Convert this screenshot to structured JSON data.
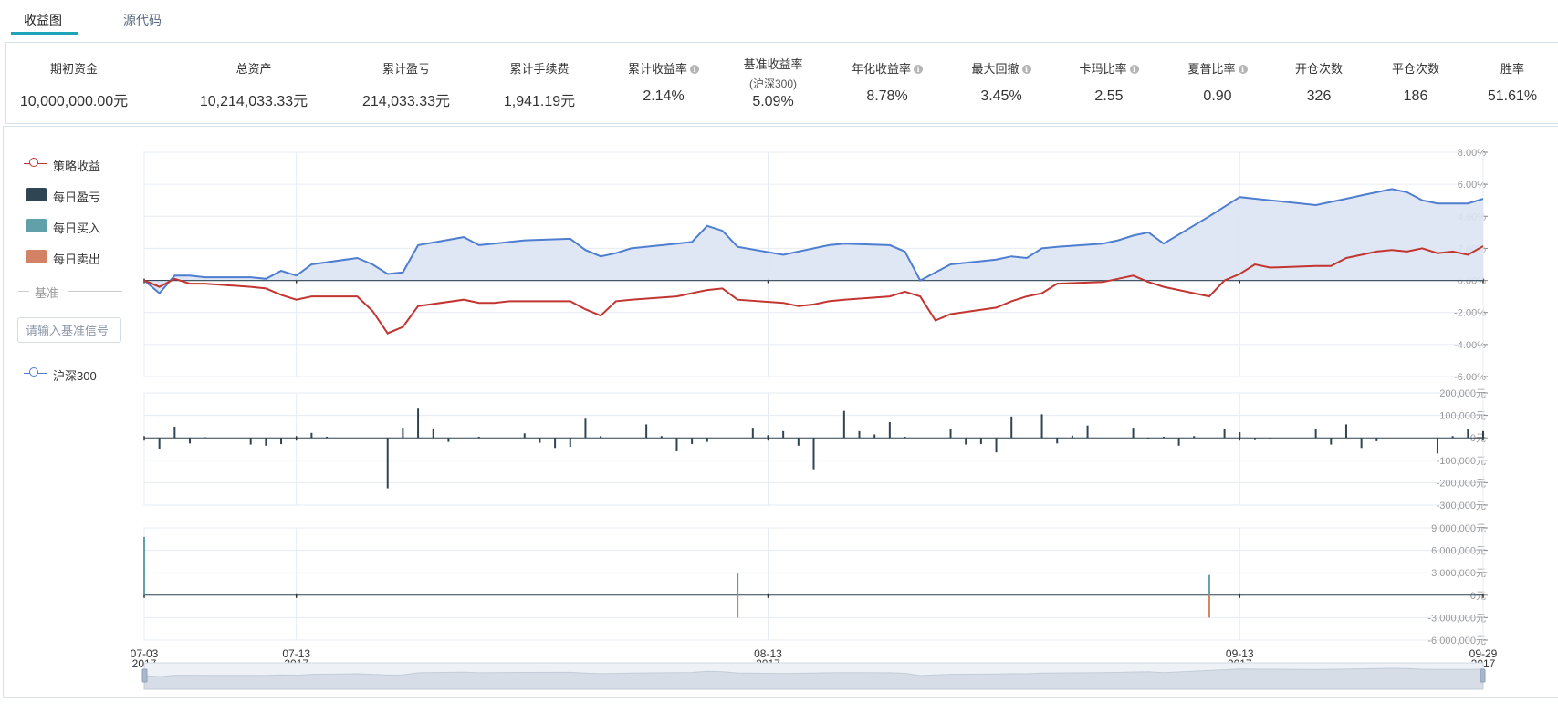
{
  "tabs": [
    {
      "label": "收益图",
      "active": true
    },
    {
      "label": "源代码",
      "active": false
    }
  ],
  "stats": [
    {
      "label": "期初资金",
      "value": "10,000,000.00元",
      "info": false
    },
    {
      "label": "总资产",
      "value": "10,214,033.33元",
      "info": false
    },
    {
      "label": "累计盈亏",
      "value": "214,033.33元",
      "info": false
    },
    {
      "label": "累计手续费",
      "value": "1,941.19元",
      "info": false
    },
    {
      "label": "累计收益率",
      "value": "2.14%",
      "info": true
    },
    {
      "label": "基准收益率",
      "sublabel": "(沪深300)",
      "value": "5.09%",
      "info": false
    },
    {
      "label": "年化收益率",
      "value": "8.78%",
      "info": true
    },
    {
      "label": "最大回撤",
      "value": "3.45%",
      "info": true
    },
    {
      "label": "卡玛比率",
      "value": "2.55",
      "info": true
    },
    {
      "label": "夏普比率",
      "value": "0.90",
      "info": true
    },
    {
      "label": "开仓次数",
      "value": "326",
      "info": false
    },
    {
      "label": "平仓次数",
      "value": "186",
      "info": false
    },
    {
      "label": "胜率",
      "value": "51.61%",
      "info": false
    }
  ],
  "legend": {
    "strategy": "策略收益",
    "daily_pnl": "每日盈亏",
    "daily_buy": "每日买入",
    "daily_sell": "每日卖出",
    "benchmark_section": "基准",
    "benchmark_placeholder": "请输入基准信号",
    "benchmark_series": "沪深300"
  },
  "colors": {
    "strategy": "#c23531",
    "benchmark": "#4f7ed0",
    "benchmark_fill": "#dbe4f3",
    "pnl": "#2f4554",
    "buy": "#61a0a8",
    "sell": "#d48265",
    "tab_accent": "#1fa3b8"
  },
  "chart_data": {
    "type": "line",
    "x_axis": {
      "range": [
        "2017-07-03",
        "2017-09-29"
      ],
      "ticks": [
        {
          "date": "2017-07-03",
          "label": "07-03",
          "year": "2017"
        },
        {
          "date": "2017-07-13",
          "label": "07-13",
          "year": "2017"
        },
        {
          "date": "2017-08-13",
          "label": "08-13",
          "year": "2017"
        },
        {
          "date": "2017-09-13",
          "label": "09-13",
          "year": "2017"
        },
        {
          "date": "2017-09-29",
          "label": "09-29",
          "year": "2017"
        }
      ]
    },
    "returns_panel": {
      "ylim": [
        -6,
        8
      ],
      "ticks": [
        "8.00%",
        "6.00%",
        "4.00%",
        "2.00%",
        "0.00%",
        "-2.00%",
        "-4.00%",
        "-6.00%"
      ],
      "tick_values": [
        8,
        6,
        4,
        2,
        0,
        -2,
        -4,
        -6
      ],
      "series": [
        {
          "name": "策略收益",
          "values": [
            [
              "2017-07-03",
              0.0
            ],
            [
              "2017-07-04",
              -0.4
            ],
            [
              "2017-07-05",
              0.1
            ],
            [
              "2017-07-06",
              -0.2
            ],
            [
              "2017-07-07",
              -0.2
            ],
            [
              "2017-07-10",
              -0.4
            ],
            [
              "2017-07-11",
              -0.5
            ],
            [
              "2017-07-12",
              -0.9
            ],
            [
              "2017-07-13",
              -1.2
            ],
            [
              "2017-07-14",
              -1.0
            ],
            [
              "2017-07-17",
              -1.0
            ],
            [
              "2017-07-18",
              -1.9
            ],
            [
              "2017-07-19",
              -3.3
            ],
            [
              "2017-07-20",
              -2.9
            ],
            [
              "2017-07-21",
              -1.6
            ],
            [
              "2017-07-24",
              -1.2
            ],
            [
              "2017-07-25",
              -1.4
            ],
            [
              "2017-07-26",
              -1.4
            ],
            [
              "2017-07-27",
              -1.3
            ],
            [
              "2017-07-28",
              -1.3
            ],
            [
              "2017-07-31",
              -1.3
            ],
            [
              "2017-08-01",
              -1.8
            ],
            [
              "2017-08-02",
              -2.2
            ],
            [
              "2017-08-03",
              -1.3
            ],
            [
              "2017-08-04",
              -1.2
            ],
            [
              "2017-08-07",
              -1.0
            ],
            [
              "2017-08-08",
              -0.8
            ],
            [
              "2017-08-09",
              -0.6
            ],
            [
              "2017-08-10",
              -0.5
            ],
            [
              "2017-08-11",
              -1.2
            ],
            [
              "2017-08-14",
              -1.4
            ],
            [
              "2017-08-15",
              -1.6
            ],
            [
              "2017-08-16",
              -1.5
            ],
            [
              "2017-08-17",
              -1.3
            ],
            [
              "2017-08-18",
              -1.2
            ],
            [
              "2017-08-21",
              -1.0
            ],
            [
              "2017-08-22",
              -0.7
            ],
            [
              "2017-08-23",
              -1.0
            ],
            [
              "2017-08-24",
              -2.5
            ],
            [
              "2017-08-25",
              -2.1
            ],
            [
              "2017-08-28",
              -1.7
            ],
            [
              "2017-08-29",
              -1.3
            ],
            [
              "2017-08-30",
              -1.0
            ],
            [
              "2017-08-31",
              -0.8
            ],
            [
              "2017-09-01",
              -0.2
            ],
            [
              "2017-09-04",
              -0.1
            ],
            [
              "2017-09-05",
              0.1
            ],
            [
              "2017-09-06",
              0.3
            ],
            [
              "2017-09-07",
              -0.1
            ],
            [
              "2017-09-08",
              -0.4
            ],
            [
              "2017-09-11",
              -1.0
            ],
            [
              "2017-09-12",
              0.0
            ],
            [
              "2017-09-13",
              0.4
            ],
            [
              "2017-09-14",
              1.0
            ],
            [
              "2017-09-15",
              0.8
            ],
            [
              "2017-09-18",
              0.9
            ],
            [
              "2017-09-19",
              0.9
            ],
            [
              "2017-09-20",
              1.4
            ],
            [
              "2017-09-21",
              1.6
            ],
            [
              "2017-09-22",
              1.8
            ],
            [
              "2017-09-23",
              1.9
            ],
            [
              "2017-09-24",
              1.8
            ],
            [
              "2017-09-25",
              2.0
            ],
            [
              "2017-09-26",
              1.7
            ],
            [
              "2017-09-27",
              1.8
            ],
            [
              "2017-09-28",
              1.6
            ],
            [
              "2017-09-29",
              2.14
            ]
          ]
        },
        {
          "name": "沪深300",
          "values": [
            [
              "2017-07-03",
              0.0
            ],
            [
              "2017-07-04",
              -0.8
            ],
            [
              "2017-07-05",
              0.3
            ],
            [
              "2017-07-06",
              0.3
            ],
            [
              "2017-07-07",
              0.2
            ],
            [
              "2017-07-10",
              0.2
            ],
            [
              "2017-07-11",
              0.1
            ],
            [
              "2017-07-12",
              0.6
            ],
            [
              "2017-07-13",
              0.3
            ],
            [
              "2017-07-14",
              1.0
            ],
            [
              "2017-07-17",
              1.4
            ],
            [
              "2017-07-18",
              1.0
            ],
            [
              "2017-07-19",
              0.4
            ],
            [
              "2017-07-20",
              0.5
            ],
            [
              "2017-07-21",
              2.2
            ],
            [
              "2017-07-24",
              2.7
            ],
            [
              "2017-07-25",
              2.2
            ],
            [
              "2017-07-26",
              2.3
            ],
            [
              "2017-07-27",
              2.4
            ],
            [
              "2017-07-28",
              2.5
            ],
            [
              "2017-07-31",
              2.6
            ],
            [
              "2017-08-01",
              1.9
            ],
            [
              "2017-08-02",
              1.5
            ],
            [
              "2017-08-03",
              1.7
            ],
            [
              "2017-08-04",
              2.0
            ],
            [
              "2017-08-07",
              2.3
            ],
            [
              "2017-08-08",
              2.4
            ],
            [
              "2017-08-09",
              3.4
            ],
            [
              "2017-08-10",
              3.1
            ],
            [
              "2017-08-11",
              2.1
            ],
            [
              "2017-08-14",
              1.6
            ],
            [
              "2017-08-15",
              1.8
            ],
            [
              "2017-08-16",
              2.0
            ],
            [
              "2017-08-17",
              2.2
            ],
            [
              "2017-08-18",
              2.3
            ],
            [
              "2017-08-21",
              2.2
            ],
            [
              "2017-08-22",
              1.8
            ],
            [
              "2017-08-23",
              0.0
            ],
            [
              "2017-08-24",
              0.5
            ],
            [
              "2017-08-25",
              1.0
            ],
            [
              "2017-08-28",
              1.3
            ],
            [
              "2017-08-29",
              1.5
            ],
            [
              "2017-08-30",
              1.4
            ],
            [
              "2017-08-31",
              2.0
            ],
            [
              "2017-09-01",
              2.1
            ],
            [
              "2017-09-04",
              2.3
            ],
            [
              "2017-09-05",
              2.5
            ],
            [
              "2017-09-06",
              2.8
            ],
            [
              "2017-09-07",
              3.0
            ],
            [
              "2017-09-08",
              2.3
            ],
            [
              "2017-09-11",
              4.0
            ],
            [
              "2017-09-12",
              4.6
            ],
            [
              "2017-09-13",
              5.2
            ],
            [
              "2017-09-14",
              5.1
            ],
            [
              "2017-09-15",
              5.0
            ],
            [
              "2017-09-18",
              4.7
            ],
            [
              "2017-09-19",
              4.9
            ],
            [
              "2017-09-20",
              5.1
            ],
            [
              "2017-09-21",
              5.3
            ],
            [
              "2017-09-22",
              5.5
            ],
            [
              "2017-09-23",
              5.7
            ],
            [
              "2017-09-24",
              5.5
            ],
            [
              "2017-09-25",
              5.0
            ],
            [
              "2017-09-26",
              4.8
            ],
            [
              "2017-09-27",
              4.8
            ],
            [
              "2017-09-28",
              4.8
            ],
            [
              "2017-09-29",
              5.09
            ]
          ]
        }
      ]
    },
    "pnl_panel": {
      "ylim": [
        -300000,
        200000
      ],
      "ticks": [
        "200,000元",
        "100,000元",
        "0元",
        "-100,000元",
        "-200,000元",
        "-300,000元"
      ],
      "tick_values": [
        200000,
        100000,
        0,
        -100000,
        -200000,
        -300000
      ],
      "series": [
        {
          "name": "每日盈亏",
          "values": [
            [
              "2017-07-04",
              -50000
            ],
            [
              "2017-07-05",
              50000
            ],
            [
              "2017-07-06",
              -25000
            ],
            [
              "2017-07-07",
              3000
            ],
            [
              "2017-07-10",
              -30000
            ],
            [
              "2017-07-11",
              -35000
            ],
            [
              "2017-07-12",
              -28000
            ],
            [
              "2017-07-14",
              22000
            ],
            [
              "2017-07-15",
              5000
            ],
            [
              "2017-07-19",
              -225000
            ],
            [
              "2017-07-20",
              45000
            ],
            [
              "2017-07-21",
              130000
            ],
            [
              "2017-07-22",
              42000
            ],
            [
              "2017-07-23",
              -18000
            ],
            [
              "2017-07-25",
              5000
            ],
            [
              "2017-07-28",
              20000
            ],
            [
              "2017-07-29",
              -22000
            ],
            [
              "2017-07-30",
              -45000
            ],
            [
              "2017-07-31",
              -40000
            ],
            [
              "2017-08-01",
              85000
            ],
            [
              "2017-08-02",
              8000
            ],
            [
              "2017-08-05",
              60000
            ],
            [
              "2017-08-06",
              8000
            ],
            [
              "2017-08-07",
              -60000
            ],
            [
              "2017-08-08",
              -28000
            ],
            [
              "2017-08-09",
              -18000
            ],
            [
              "2017-08-12",
              45000
            ],
            [
              "2017-08-13",
              12000
            ],
            [
              "2017-08-14",
              30000
            ],
            [
              "2017-08-15",
              -35000
            ],
            [
              "2017-08-16",
              -140000
            ],
            [
              "2017-08-18",
              120000
            ],
            [
              "2017-08-19",
              30000
            ],
            [
              "2017-08-20",
              15000
            ],
            [
              "2017-08-21",
              70000
            ],
            [
              "2017-08-22",
              5000
            ],
            [
              "2017-08-25",
              40000
            ],
            [
              "2017-08-26",
              -30000
            ],
            [
              "2017-08-27",
              -28000
            ],
            [
              "2017-08-28",
              -65000
            ],
            [
              "2017-08-29",
              95000
            ],
            [
              "2017-08-31",
              105000
            ],
            [
              "2017-09-01",
              -25000
            ],
            [
              "2017-09-02",
              10000
            ],
            [
              "2017-09-03",
              55000
            ],
            [
              "2017-09-06",
              45000
            ],
            [
              "2017-09-07",
              -5000
            ],
            [
              "2017-09-08",
              5000
            ],
            [
              "2017-09-09",
              -35000
            ],
            [
              "2017-09-10",
              8000
            ],
            [
              "2017-09-12",
              40000
            ],
            [
              "2017-09-13",
              25000
            ],
            [
              "2017-09-14",
              -10000
            ],
            [
              "2017-09-15",
              -5000
            ],
            [
              "2017-09-18",
              40000
            ],
            [
              "2017-09-19",
              -30000
            ],
            [
              "2017-09-20",
              60000
            ],
            [
              "2017-09-21",
              -45000
            ],
            [
              "2017-09-22",
              -15000
            ],
            [
              "2017-09-26",
              -70000
            ],
            [
              "2017-09-27",
              8000
            ],
            [
              "2017-09-28",
              40000
            ],
            [
              "2017-09-29",
              30000
            ]
          ]
        }
      ]
    },
    "trade_panel": {
      "ylim": [
        -6000000,
        9000000
      ],
      "ticks": [
        "9,000,000元",
        "6,000,000元",
        "3,000,000元",
        "0元",
        "-3,000,000元",
        "-6,000,000元"
      ],
      "tick_values": [
        9000000,
        6000000,
        3000000,
        0,
        -3000000,
        -6000000
      ],
      "series": [
        {
          "name": "每日买入",
          "values": [
            [
              "2017-07-03",
              7800000
            ],
            [
              "2017-08-11",
              2900000
            ],
            [
              "2017-09-11",
              2700000
            ]
          ]
        },
        {
          "name": "每日卖出",
          "values": [
            [
              "2017-08-11",
              -3000000
            ],
            [
              "2017-09-11",
              -3000000
            ]
          ]
        }
      ]
    },
    "grid": true,
    "legend_position": "left"
  }
}
